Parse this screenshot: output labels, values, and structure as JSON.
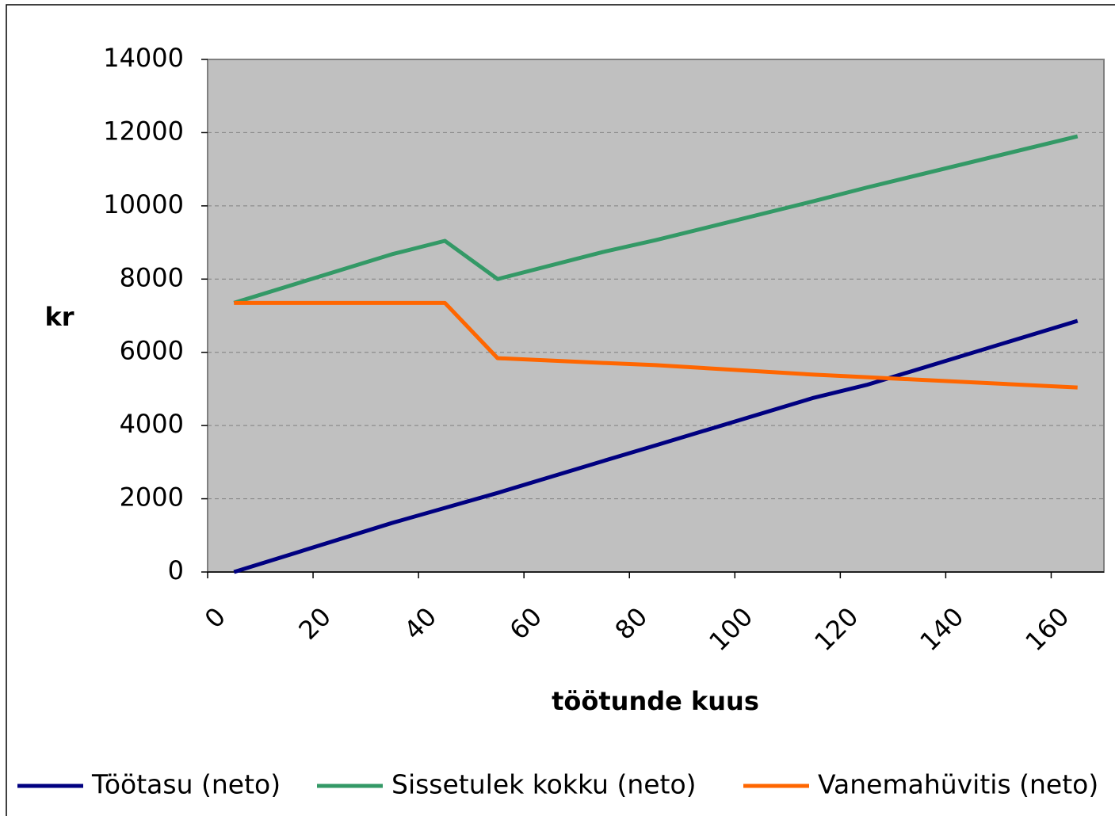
{
  "chart_data": {
    "type": "line",
    "x": [
      5,
      35,
      45,
      55,
      75,
      85,
      115,
      125,
      165
    ],
    "series": [
      {
        "name": "Töötasu (neto)",
        "color": "#000080",
        "values": [
          0,
          1340,
          1750,
          2160,
          3030,
          3460,
          4760,
          5110,
          6860
        ]
      },
      {
        "name": "Sissetulek kokku (neto)",
        "color": "#339966",
        "values": [
          7350,
          8680,
          9045,
          8000,
          8740,
          9065,
          10130,
          10500,
          11900
        ]
      },
      {
        "name": "Vanemahüvitis (neto)",
        "color": "#ff6600",
        "values": [
          7350,
          7350,
          7350,
          5840,
          5710,
          5650,
          5390,
          5320,
          5040
        ]
      }
    ],
    "xlabel": "töötunde kuus",
    "ylabel": "kr",
    "xlim": [
      0,
      170
    ],
    "xticks": [
      0,
      20,
      40,
      60,
      80,
      100,
      120,
      140,
      160
    ],
    "ylim": [
      0,
      14000
    ],
    "yticks": [
      0,
      2000,
      4000,
      6000,
      8000,
      10000,
      12000,
      14000
    ],
    "grid": true,
    "legend": "bottom"
  }
}
